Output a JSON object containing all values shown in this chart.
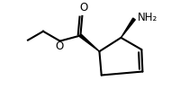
{
  "bg_color": "#ffffff",
  "line_color": "#000000",
  "line_width": 1.5,
  "label_NH2": "NH₂",
  "label_O_carbonyl": "O",
  "label_O_ether": "O",
  "label_NH2_fontsize": 8.5,
  "label_O_fontsize": 8.5,
  "fig_width": 2.1,
  "fig_height": 1.2,
  "dpi": 100,
  "xlim": [
    0,
    10
  ],
  "ylim": [
    0,
    5.7
  ]
}
